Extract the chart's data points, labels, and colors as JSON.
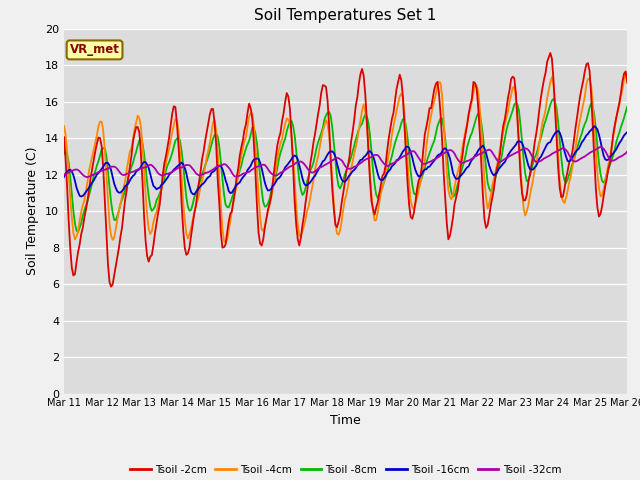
{
  "title": "Soil Temperatures Set 1",
  "xlabel": "Time",
  "ylabel": "Soil Temperature (C)",
  "ylim": [
    0,
    20
  ],
  "yticks": [
    0,
    2,
    4,
    6,
    8,
    10,
    12,
    14,
    16,
    18,
    20
  ],
  "xtick_labels": [
    "Mar 11",
    "Mar 12",
    "Mar 13",
    "Mar 14",
    "Mar 15",
    "Mar 16",
    "Mar 17",
    "Mar 18",
    "Mar 19",
    "Mar 20",
    "Mar 21",
    "Mar 22",
    "Mar 23",
    "Mar 24",
    "Mar 25",
    "Mar 26"
  ],
  "colors": {
    "Tsoil -2cm": "#dd0000",
    "Tsoil -4cm": "#ff8800",
    "Tsoil -8cm": "#00bb00",
    "Tsoil -16cm": "#0000cc",
    "Tsoil -32cm": "#aa00aa"
  },
  "bg_color": "#dcdcdc",
  "fig_bg_color": "#f0f0f0",
  "grid_color": "#ffffff",
  "annotation_text": "VR_met",
  "annotation_box_color": "#ffffaa",
  "annotation_box_edge": "#886600"
}
